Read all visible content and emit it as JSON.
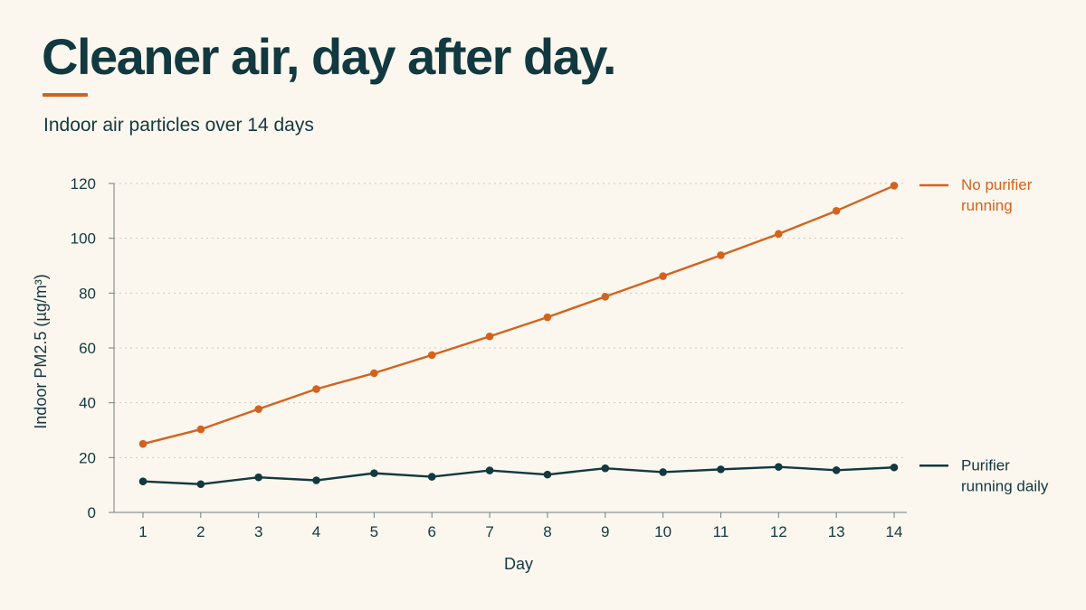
{
  "header": {
    "title": "Cleaner air, day after day.",
    "subtitle": "Indoor air particles over 14 days"
  },
  "colors": {
    "background": "#fbf7ee",
    "text": "#12393f",
    "accent": "#d4621f",
    "grid": "#cfcabd"
  },
  "chart_data": {
    "type": "line",
    "x": [
      1,
      2,
      3,
      4,
      5,
      6,
      7,
      8,
      9,
      10,
      11,
      12,
      13,
      14
    ],
    "xlabel": "Day",
    "ylabel": "Indoor PM2.5 (µg/m³)",
    "ylim": [
      0,
      120
    ],
    "yticks": [
      0,
      20,
      40,
      60,
      80,
      100,
      120
    ],
    "grid": "horizontal dotted",
    "legend": "right, next to line ends",
    "series": [
      {
        "name": "No purifier running",
        "legend_lines": [
          "No purifier",
          "running"
        ],
        "color": "#d4621f",
        "values": [
          25,
          30.3,
          37.7,
          45,
          50.8,
          57.4,
          64.2,
          71.2,
          78.7,
          86.2,
          93.8,
          101.6,
          110,
          119.2
        ]
      },
      {
        "name": "Purifier running daily",
        "legend_lines": [
          "Purifier",
          "running daily"
        ],
        "color": "#12393f",
        "values": [
          11.3,
          10.3,
          12.8,
          11.7,
          14.3,
          13,
          15.3,
          13.8,
          16.1,
          14.7,
          15.7,
          16.6,
          15.4,
          16.4
        ]
      }
    ]
  }
}
